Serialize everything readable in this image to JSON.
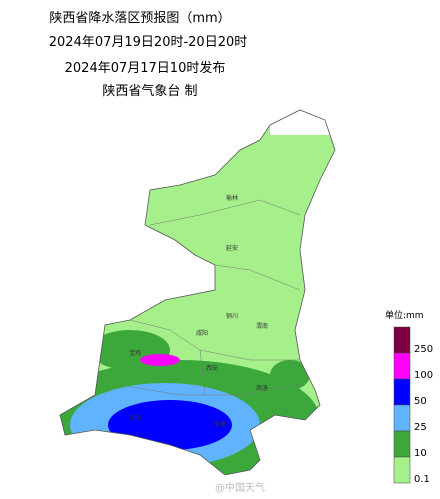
{
  "header": {
    "title": "陕西省降水落区预报图（mm）",
    "period": "2024年07月19日20时-20日20时",
    "issued": "2024年07月17日10时发布",
    "issuer": "陕西省气象台 制"
  },
  "legend": {
    "unit": "单位:mm",
    "items": [
      {
        "label": "250",
        "color": "#7a0040"
      },
      {
        "label": "100",
        "color": "#ff00ff"
      },
      {
        "label": "50",
        "color": "#0000ff"
      },
      {
        "label": "25",
        "color": "#60b4ff"
      },
      {
        "label": "10",
        "color": "#3ca83c"
      },
      {
        "label": "0.1",
        "color": "#a6f08c"
      }
    ]
  },
  "cities": [
    "榆林",
    "延安",
    "铜川",
    "宝鸡",
    "咸阳",
    "渭南",
    "西安",
    "汉中",
    "商洛",
    "安康"
  ],
  "watermark": "@中国天气"
}
